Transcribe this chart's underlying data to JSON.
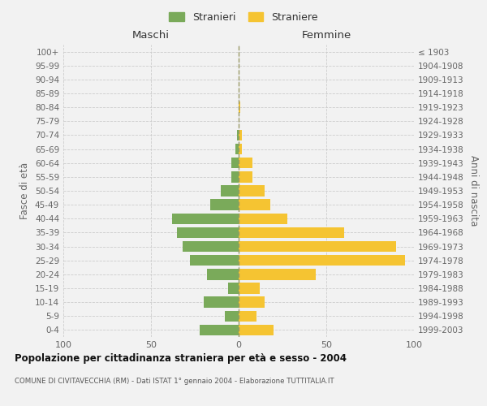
{
  "age_groups": [
    "0-4",
    "5-9",
    "10-14",
    "15-19",
    "20-24",
    "25-29",
    "30-34",
    "35-39",
    "40-44",
    "45-49",
    "50-54",
    "55-59",
    "60-64",
    "65-69",
    "70-74",
    "75-79",
    "80-84",
    "85-89",
    "90-94",
    "95-99",
    "100+"
  ],
  "birth_years": [
    "1999-2003",
    "1994-1998",
    "1989-1993",
    "1984-1988",
    "1979-1983",
    "1974-1978",
    "1969-1973",
    "1964-1968",
    "1959-1963",
    "1954-1958",
    "1949-1953",
    "1944-1948",
    "1939-1943",
    "1934-1938",
    "1929-1933",
    "1924-1928",
    "1919-1923",
    "1914-1918",
    "1909-1913",
    "1904-1908",
    "≤ 1903"
  ],
  "maschi": [
    22,
    8,
    20,
    6,
    18,
    28,
    32,
    35,
    38,
    16,
    10,
    4,
    4,
    2,
    1,
    0,
    0,
    0,
    0,
    0,
    0
  ],
  "femmine": [
    20,
    10,
    15,
    12,
    44,
    95,
    90,
    60,
    28,
    18,
    15,
    8,
    8,
    2,
    2,
    0,
    1,
    0,
    0,
    0,
    0
  ],
  "color_maschi": "#7aaa5a",
  "color_femmine": "#f5c432",
  "bg_color": "#f2f2f2",
  "grid_color": "#cccccc",
  "title": "Popolazione per cittadinanza straniera per età e sesso - 2004",
  "subtitle": "COMUNE DI CIVITAVECCHIA (RM) - Dati ISTAT 1° gennaio 2004 - Elaborazione TUTTITALIA.IT",
  "xlabel_left": "Maschi",
  "xlabel_right": "Femmine",
  "ylabel_left": "Fasce di età",
  "ylabel_right": "Anni di nascita",
  "xlim": 100,
  "legend_maschi": "Stranieri",
  "legend_femmine": "Straniere"
}
